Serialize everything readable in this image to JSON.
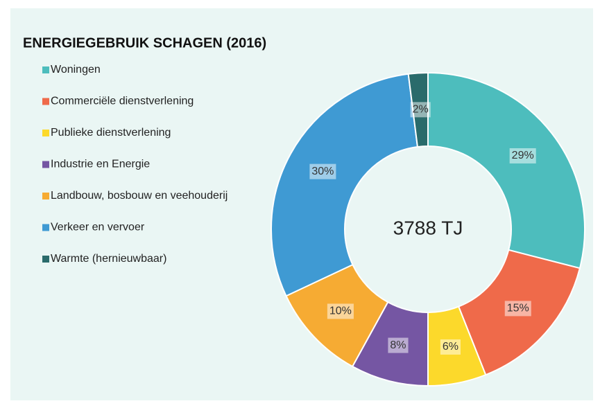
{
  "chart_data": {
    "type": "donut",
    "title": "ENERGIEGEBRUIK SCHAGEN (2016)",
    "center_label": "3788 TJ",
    "categories": [
      "Woningen",
      "Commerciële dienstverlening",
      "Publieke dienstverlening",
      "Industrie en Energie",
      "Landbouw, bosbouw en veehouderij",
      "Verkeer en vervoer",
      "Warmte (hernieuwbaar)"
    ],
    "values": [
      29,
      15,
      6,
      8,
      10,
      30,
      2
    ],
    "value_labels": [
      "29%",
      "15%",
      "6%",
      "8%",
      "10%",
      "30%",
      "2%"
    ],
    "colors": [
      "#4dbdbd",
      "#ef6a4a",
      "#fcd92b",
      "#7556a3",
      "#f6ab33",
      "#3f9ad3",
      "#2a6b6b"
    ],
    "legend": "left"
  }
}
